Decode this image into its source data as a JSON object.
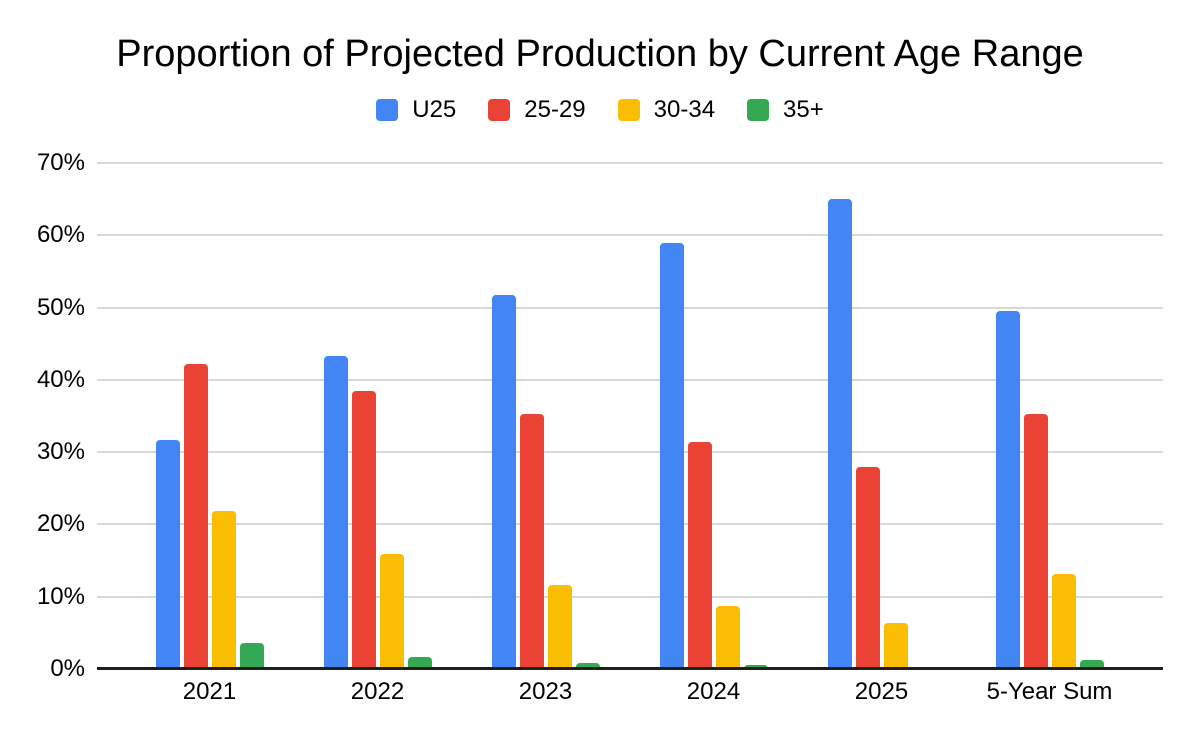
{
  "chart_data": {
    "type": "bar",
    "title": "Proportion of Projected Production by Current Age Range",
    "categories": [
      "2021",
      "2022",
      "2023",
      "2024",
      "2025",
      "5-Year Sum"
    ],
    "series": [
      {
        "name": "U25",
        "color": "#4285F4",
        "values": [
          31.7,
          43.3,
          51.7,
          59.0,
          65.0,
          49.5
        ]
      },
      {
        "name": "25-29",
        "color": "#EA4335",
        "values": [
          42.2,
          38.4,
          35.3,
          31.4,
          27.9,
          35.3
        ]
      },
      {
        "name": "30-34",
        "color": "#FBBC04",
        "values": [
          21.9,
          15.9,
          11.6,
          8.7,
          6.4,
          13.1
        ]
      },
      {
        "name": "35+",
        "color": "#34A853",
        "values": [
          3.6,
          1.6,
          0.9,
          0.5,
          0.3,
          1.3
        ]
      }
    ],
    "xlabel": "",
    "ylabel": "",
    "ylim": [
      0,
      70
    ],
    "yticks": [
      0,
      10,
      20,
      30,
      40,
      50,
      60,
      70
    ],
    "ytick_labels": [
      "0%",
      "10%",
      "20%",
      "30%",
      "40%",
      "50%",
      "60%",
      "70%"
    ],
    "grid": true,
    "legend_position": "top",
    "background_color": "#ffffff",
    "gridline_color": "#d9d9d9",
    "axis_line_color": "#1f1f1f",
    "text_color": "#000000"
  }
}
